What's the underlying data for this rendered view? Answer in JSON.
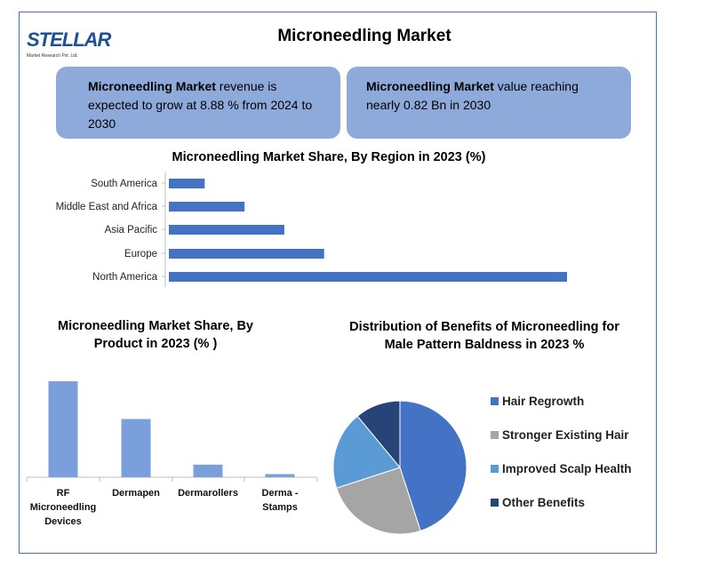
{
  "logo": {
    "text": "STELLAR",
    "tagline": "Market Research Pvt. Ltd."
  },
  "title": "Microneedling Market",
  "callouts": [
    {
      "bold": "Microneedling Market",
      "text": " revenue is expected to grow at 8.88 % from 2024 to 2030"
    },
    {
      "bold": "Microneedling Market",
      "text": " value reaching nearly 0.82 Bn in 2030"
    }
  ],
  "colors": {
    "bar_region": "#4472c4",
    "bar_product": "#7b9fdc",
    "callout_bg": "#8eaadb",
    "frame": "#4a6fb5"
  },
  "chart_data": [
    {
      "type": "bar",
      "orientation": "horizontal",
      "title": "Microneedling Market Share, By Region in 2023 (%)",
      "categories": [
        "South America",
        "Middle East and Africa",
        "Asia Pacific",
        "Europe",
        "North America"
      ],
      "values": [
        4.5,
        9.5,
        14.5,
        19.5,
        50
      ],
      "grid": false
    },
    {
      "type": "bar",
      "title": "Microneedling Market Share, By Product in 2023 (% )",
      "categories": [
        "RF Microneedling Devices",
        "Dermapen",
        "Dermarollers",
        "Derma - Stamps"
      ],
      "values": [
        61,
        37,
        8,
        2
      ],
      "grid": false
    },
    {
      "type": "pie",
      "title": "Distribution of Benefits of Microneedling for Male Pattern Baldness in 2023 %",
      "categories": [
        "Hair Regrowth",
        "Stronger Existing Hair",
        "Improved Scalp Health",
        "Other Benefits"
      ],
      "values": [
        45,
        25,
        19,
        11
      ],
      "colors": [
        "#4472c4",
        "#a5a5a5",
        "#5b9bd5",
        "#264478"
      ],
      "legend": "right"
    }
  ]
}
